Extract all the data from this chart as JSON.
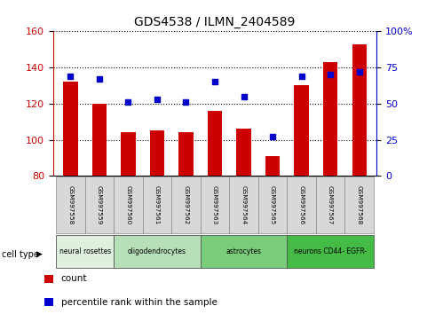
{
  "title": "GDS4538 / ILMN_2404589",
  "samples": [
    "GSM997558",
    "GSM997559",
    "GSM997560",
    "GSM997561",
    "GSM997562",
    "GSM997563",
    "GSM997564",
    "GSM997565",
    "GSM997566",
    "GSM997567",
    "GSM997568"
  ],
  "counts": [
    132,
    120,
    104,
    105,
    104,
    116,
    106,
    91,
    130,
    143,
    153
  ],
  "percentiles": [
    69,
    67,
    51,
    53,
    51,
    65,
    55,
    27,
    69,
    70,
    72
  ],
  "ylim_left": [
    80,
    160
  ],
  "ylim_right": [
    0,
    100
  ],
  "yticks_left": [
    80,
    100,
    120,
    140,
    160
  ],
  "yticks_right": [
    0,
    25,
    50,
    75,
    100
  ],
  "bar_color": "#cc0000",
  "dot_color": "#0000cc",
  "cell_types": [
    {
      "label": "neural rosettes",
      "span": [
        0,
        2
      ],
      "color": "#dff0df"
    },
    {
      "label": "oligodendrocytes",
      "span": [
        2,
        5
      ],
      "color": "#b8e0b8"
    },
    {
      "label": "astrocytes",
      "span": [
        5,
        8
      ],
      "color": "#7acc7a"
    },
    {
      "label": "neurons CD44- EGFR-",
      "span": [
        8,
        11
      ],
      "color": "#44bb44"
    }
  ],
  "legend_count_label": "count",
  "legend_pct_label": "percentile rank within the sample",
  "cell_type_label": "cell type",
  "bar_color_red": "#cc0000",
  "dot_color_blue": "#0000cc",
  "tick_label_color_left": "#cc0000",
  "tick_label_color_right": "#0000cc",
  "bar_bottom": 80,
  "bar_width": 0.5
}
